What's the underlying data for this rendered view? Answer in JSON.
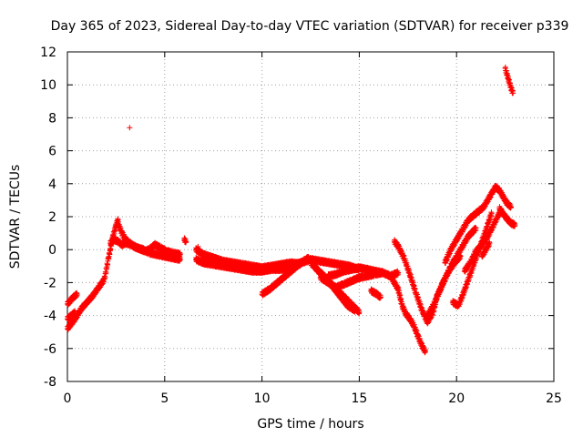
{
  "chart_data": {
    "type": "scatter",
    "title": "Day 365 of 2023, Sidereal Day-to-day VTEC variation (SDTVAR) for receiver p339",
    "xlabel": "GPS time / hours",
    "ylabel": "SDTVAR / TECUs",
    "xlim": [
      0,
      25
    ],
    "ylim": [
      -8,
      12
    ],
    "xticks": [
      0,
      5,
      10,
      15,
      20,
      25
    ],
    "yticks": [
      -8,
      -6,
      -4,
      -2,
      0,
      2,
      4,
      6,
      8,
      10,
      12
    ],
    "grid": true,
    "marker": "+",
    "marker_color": "#ff0000",
    "series": [
      {
        "name": "SDTVAR",
        "segments": [
          {
            "x": [
              0.0,
              0.2,
              0.4,
              0.7,
              1.0,
              1.3,
              1.6,
              1.9,
              2.1,
              2.3,
              2.5,
              2.6
            ],
            "y": [
              -4.8,
              -4.5,
              -4.2,
              -3.6,
              -3.2,
              -2.8,
              -2.3,
              -1.8,
              -0.6,
              0.6,
              1.5,
              1.8
            ]
          },
          {
            "x": [
              0.0,
              0.15,
              0.3,
              0.5
            ],
            "y": [
              -3.3,
              -3.1,
              -2.9,
              -2.7
            ]
          },
          {
            "x": [
              0.0,
              0.2,
              0.4
            ],
            "y": [
              -4.2,
              -4.0,
              -3.8
            ]
          },
          {
            "x": [
              2.6,
              2.8,
              3.0,
              3.2,
              3.4,
              3.6,
              3.8,
              4.0,
              4.2,
              4.5,
              4.8,
              5.1,
              5.4,
              5.8
            ],
            "y": [
              1.6,
              1.0,
              0.6,
              0.4,
              0.2,
              0.1,
              0.0,
              -0.1,
              0.0,
              0.3,
              0.1,
              -0.1,
              -0.2,
              -0.3
            ]
          },
          {
            "x": [
              2.2,
              2.4,
              2.6,
              2.8,
              3.0,
              3.3,
              3.6,
              3.9,
              4.2,
              4.6,
              5.0,
              5.4,
              5.8
            ],
            "y": [
              0.4,
              0.6,
              0.5,
              0.3,
              0.4,
              0.3,
              0.1,
              0.0,
              -0.2,
              -0.3,
              -0.4,
              -0.5,
              -0.6
            ]
          },
          {
            "x": [
              6.6,
              7.0,
              7.5,
              8.0,
              8.5,
              9.0,
              9.5,
              10.0,
              10.5,
              11.0,
              11.5,
              12.0
            ],
            "y": [
              0.0,
              -0.3,
              -0.5,
              -0.7,
              -0.8,
              -0.9,
              -1.0,
              -1.1,
              -1.0,
              -0.9,
              -0.8,
              -0.9
            ]
          },
          {
            "x": [
              6.6,
              7.0,
              7.5,
              8.0,
              8.5,
              9.0,
              9.5,
              10.0,
              10.5,
              11.0,
              11.5
            ],
            "y": [
              -0.6,
              -0.8,
              -0.9,
              -1.0,
              -1.1,
              -1.2,
              -1.3,
              -1.3,
              -1.2,
              -1.2,
              -1.1
            ]
          },
          {
            "x": [
              7.0,
              7.5,
              8.0,
              8.5,
              9.0,
              9.5,
              10.0,
              10.5,
              11.0,
              11.5,
              12.0,
              12.5,
              13.0,
              13.5,
              14.0,
              14.5,
              15.0
            ],
            "y": [
              -0.4,
              -0.6,
              -0.8,
              -0.9,
              -1.1,
              -1.2,
              -1.3,
              -1.1,
              -1.0,
              -0.9,
              -0.8,
              -0.6,
              -0.7,
              -0.8,
              -0.9,
              -1.0,
              -1.2
            ]
          },
          {
            "x": [
              10.0,
              10.4,
              10.8,
              11.2,
              11.6,
              12.0,
              12.4
            ],
            "y": [
              -2.7,
              -2.4,
              -2.0,
              -1.6,
              -1.2,
              -0.8,
              -0.5
            ]
          },
          {
            "x": [
              12.5,
              13.0,
              13.5,
              14.0,
              14.5,
              15.0
            ],
            "y": [
              -0.8,
              -1.4,
              -2.0,
              -2.6,
              -3.2,
              -3.8
            ]
          },
          {
            "x": [
              12.8,
              13.2,
              13.6,
              14.0,
              14.4,
              14.8
            ],
            "y": [
              -1.2,
              -1.6,
              -2.2,
              -2.8,
              -3.4,
              -3.7
            ]
          },
          {
            "x": [
              13.0,
              13.4,
              13.8,
              14.2,
              14.6,
              15.0,
              15.4,
              15.8,
              16.2
            ],
            "y": [
              -1.7,
              -2.0,
              -2.3,
              -2.1,
              -1.9,
              -1.7,
              -1.6,
              -1.5,
              -1.4
            ]
          },
          {
            "x": [
              13.4,
              13.8,
              14.2,
              14.6,
              15.0,
              15.4,
              15.8,
              16.2,
              16.6,
              17.0
            ],
            "y": [
              -1.6,
              -1.5,
              -1.3,
              -1.2,
              -1.1,
              -1.2,
              -1.3,
              -1.4,
              -1.6,
              -1.4
            ]
          },
          {
            "x": [
              15.6,
              15.9,
              16.1
            ],
            "y": [
              -2.5,
              -2.7,
              -2.9
            ]
          },
          {
            "x": [
              16.6,
              17.0,
              17.2,
              17.4,
              17.6,
              17.8,
              18.0,
              18.2,
              18.4
            ],
            "y": [
              -1.6,
              -2.4,
              -3.4,
              -3.9,
              -4.2,
              -4.6,
              -5.2,
              -5.8,
              -6.2
            ]
          },
          {
            "x": [
              16.8,
              17.0,
              17.3,
              17.6,
              17.9,
              18.2,
              18.5,
              18.8,
              19.0,
              19.3,
              19.6,
              19.9,
              20.2
            ],
            "y": [
              0.5,
              0.2,
              -0.5,
              -1.5,
              -2.6,
              -3.6,
              -4.4,
              -3.8,
              -2.8,
              -2.0,
              -1.3,
              -0.8,
              -0.4
            ]
          },
          {
            "x": [
              18.5,
              18.8,
              19.1,
              19.4,
              19.7,
              20.0,
              20.3,
              20.6,
              21.0
            ],
            "y": [
              -4.0,
              -3.4,
              -2.6,
              -1.8,
              -1.0,
              -0.4,
              0.2,
              0.8,
              1.3
            ]
          },
          {
            "x": [
              19.4,
              19.7,
              20.0,
              20.3,
              20.6,
              21.0,
              21.4,
              21.8,
              22.0,
              22.2,
              22.4,
              22.6,
              22.8
            ],
            "y": [
              -0.8,
              0.0,
              0.6,
              1.2,
              1.8,
              2.2,
              2.6,
              3.4,
              3.8,
              3.6,
              3.2,
              2.8,
              2.6
            ]
          },
          {
            "x": [
              19.8,
              20.1,
              20.4,
              20.7,
              21.0,
              21.3,
              21.6,
              21.8
            ],
            "y": [
              -3.2,
              -3.4,
              -2.5,
              -1.5,
              -0.5,
              0.5,
              1.5,
              2.2
            ]
          },
          {
            "x": [
              20.4,
              20.7,
              21.0,
              21.3,
              21.6,
              21.9,
              22.1,
              22.3
            ],
            "y": [
              -1.3,
              -0.8,
              -0.1,
              0.3,
              0.8,
              1.5,
              2.0,
              2.4
            ]
          },
          {
            "x": [
              21.3,
              21.5,
              21.7
            ],
            "y": [
              -0.4,
              0.0,
              0.4
            ]
          },
          {
            "x": [
              22.2,
              22.5,
              22.8,
              23.0
            ],
            "y": [
              2.5,
              2.0,
              1.6,
              1.5
            ]
          },
          {
            "x": [
              22.5,
              22.6,
              22.7,
              22.8,
              22.9
            ],
            "y": [
              11.0,
              10.6,
              10.2,
              9.8,
              9.5
            ]
          },
          {
            "x": [
              3.2
            ],
            "y": [
              7.4
            ]
          },
          {
            "x": [
              6.0,
              6.1
            ],
            "y": [
              0.6,
              0.5
            ]
          },
          {
            "x": [
              6.7,
              6.8
            ],
            "y": [
              0.1,
              -0.2
            ]
          }
        ]
      }
    ]
  }
}
